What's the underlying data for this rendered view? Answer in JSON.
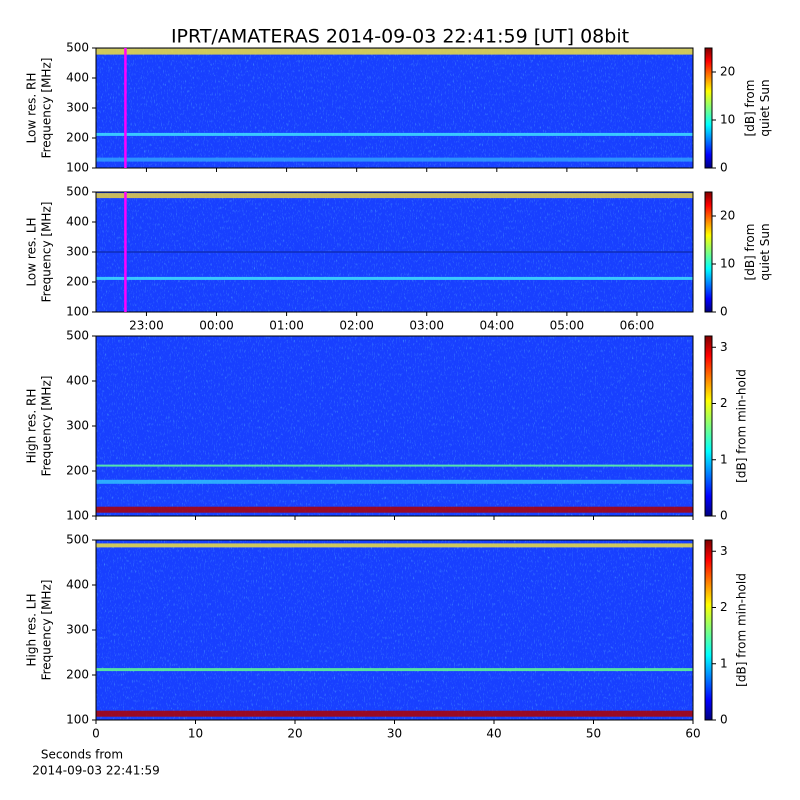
{
  "title": "IPRT/AMATERAS 2014-09-03 22:41:59 [UT]   08bit",
  "chart_data": [
    {
      "type": "heatmap",
      "ylabel": [
        "Low res. RH",
        "Frequency [MHz]"
      ],
      "ylim": [
        100,
        500
      ],
      "yticks": [
        100,
        200,
        300,
        400,
        500
      ],
      "xlim": [
        22.28,
        30.8
      ],
      "sharex": 1,
      "marker_x": 22.7,
      "marker_color": "#ff00ff",
      "colormap": "jet",
      "zlim": [
        0,
        25
      ],
      "zticks": [
        0,
        10,
        20
      ],
      "zlabel": [
        "[dB] from",
        "quiet Sun"
      ]
    },
    {
      "type": "heatmap",
      "ylabel": [
        "Low res. LH",
        "Frequency [MHz]"
      ],
      "ylim": [
        100,
        500
      ],
      "yticks": [
        100,
        200,
        300,
        400,
        500
      ],
      "xlim": [
        22.28,
        30.8
      ],
      "xticks": [
        {
          "value": 23,
          "label": "23:00"
        },
        {
          "value": 24,
          "label": "00:00"
        },
        {
          "value": 25,
          "label": "01:00"
        },
        {
          "value": 26,
          "label": "02:00"
        },
        {
          "value": 27,
          "label": "03:00"
        },
        {
          "value": 28,
          "label": "04:00"
        },
        {
          "value": 29,
          "label": "05:00"
        },
        {
          "value": 30,
          "label": "06:00"
        }
      ],
      "marker_x": 22.7,
      "marker_color": "#ff00ff",
      "colormap": "jet",
      "zlim": [
        0,
        25
      ],
      "zticks": [
        0,
        10,
        20
      ],
      "zlabel": [
        "[dB] from",
        "quiet Sun"
      ]
    },
    {
      "type": "heatmap",
      "ylabel": [
        "High res. RH",
        "Frequency [MHz]"
      ],
      "ylim": [
        100,
        500
      ],
      "yticks": [
        100,
        200,
        300,
        400,
        500
      ],
      "xlim": [
        0,
        60
      ],
      "sharex": 3,
      "colormap": "jet",
      "zlim": [
        0,
        3.2
      ],
      "zticks": [
        0,
        1,
        2,
        3
      ],
      "zlabel": [
        "[dB] from min-hold"
      ]
    },
    {
      "type": "heatmap",
      "ylabel": [
        "High res. LH",
        "Frequency [MHz]"
      ],
      "ylim": [
        100,
        500
      ],
      "yticks": [
        100,
        200,
        300,
        400,
        500
      ],
      "xlim": [
        0,
        60
      ],
      "xticks": [
        0,
        10,
        20,
        30,
        40,
        50,
        60
      ],
      "xlabel": [
        "Seconds from",
        "2014-09-03 22:41:59"
      ],
      "colormap": "jet",
      "zlim": [
        0,
        3.2
      ],
      "zticks": [
        0,
        1,
        2,
        3
      ],
      "zlabel": [
        "[dB] from min-hold"
      ]
    }
  ]
}
